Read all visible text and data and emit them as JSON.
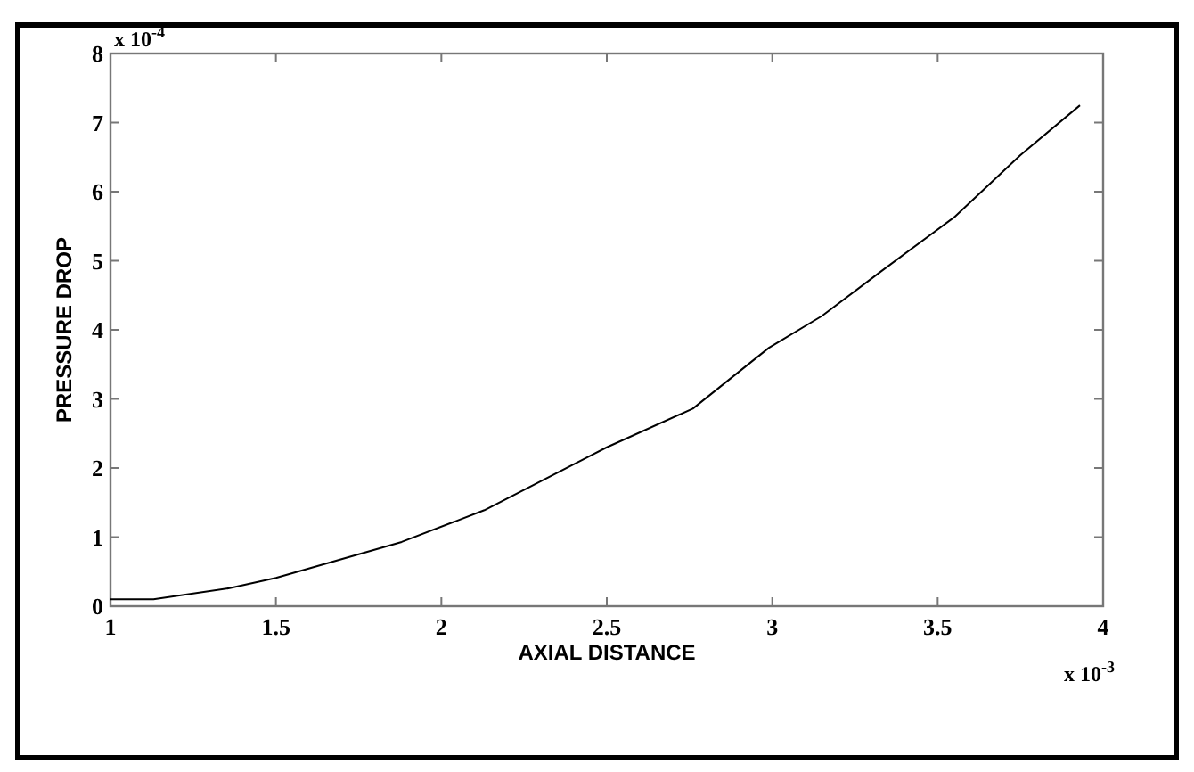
{
  "chart_data": {
    "type": "line",
    "xlabel": "AXIAL DISTANCE",
    "ylabel": "PRESSURE DROP",
    "x": [
      1,
      1.13,
      1.36,
      1.5,
      1.88,
      2.13,
      2.5,
      2.76,
      2.99,
      3.15,
      3.33,
      3.55,
      3.75,
      3.93
    ],
    "series": [
      {
        "color": "#000000",
        "values": [
          0.1,
          0.1,
          0.26,
          0.41,
          0.93,
          1.39,
          2.3,
          2.86,
          3.74,
          4.2,
          4.85,
          5.63,
          6.53,
          7.25
        ]
      }
    ],
    "xlim": [
      1,
      4
    ],
    "xticks": [
      1,
      1.5,
      2,
      2.5,
      3,
      3.5,
      4
    ],
    "ylim": [
      0,
      8
    ],
    "yticks": [
      0,
      1,
      2,
      3,
      4,
      5,
      6,
      7,
      8
    ],
    "annotations": [
      "x 10$^{-4}$",
      "x 10$^{-3}$"
    ],
    "grid": false,
    "marker": "none",
    "line_style": "solid"
  }
}
